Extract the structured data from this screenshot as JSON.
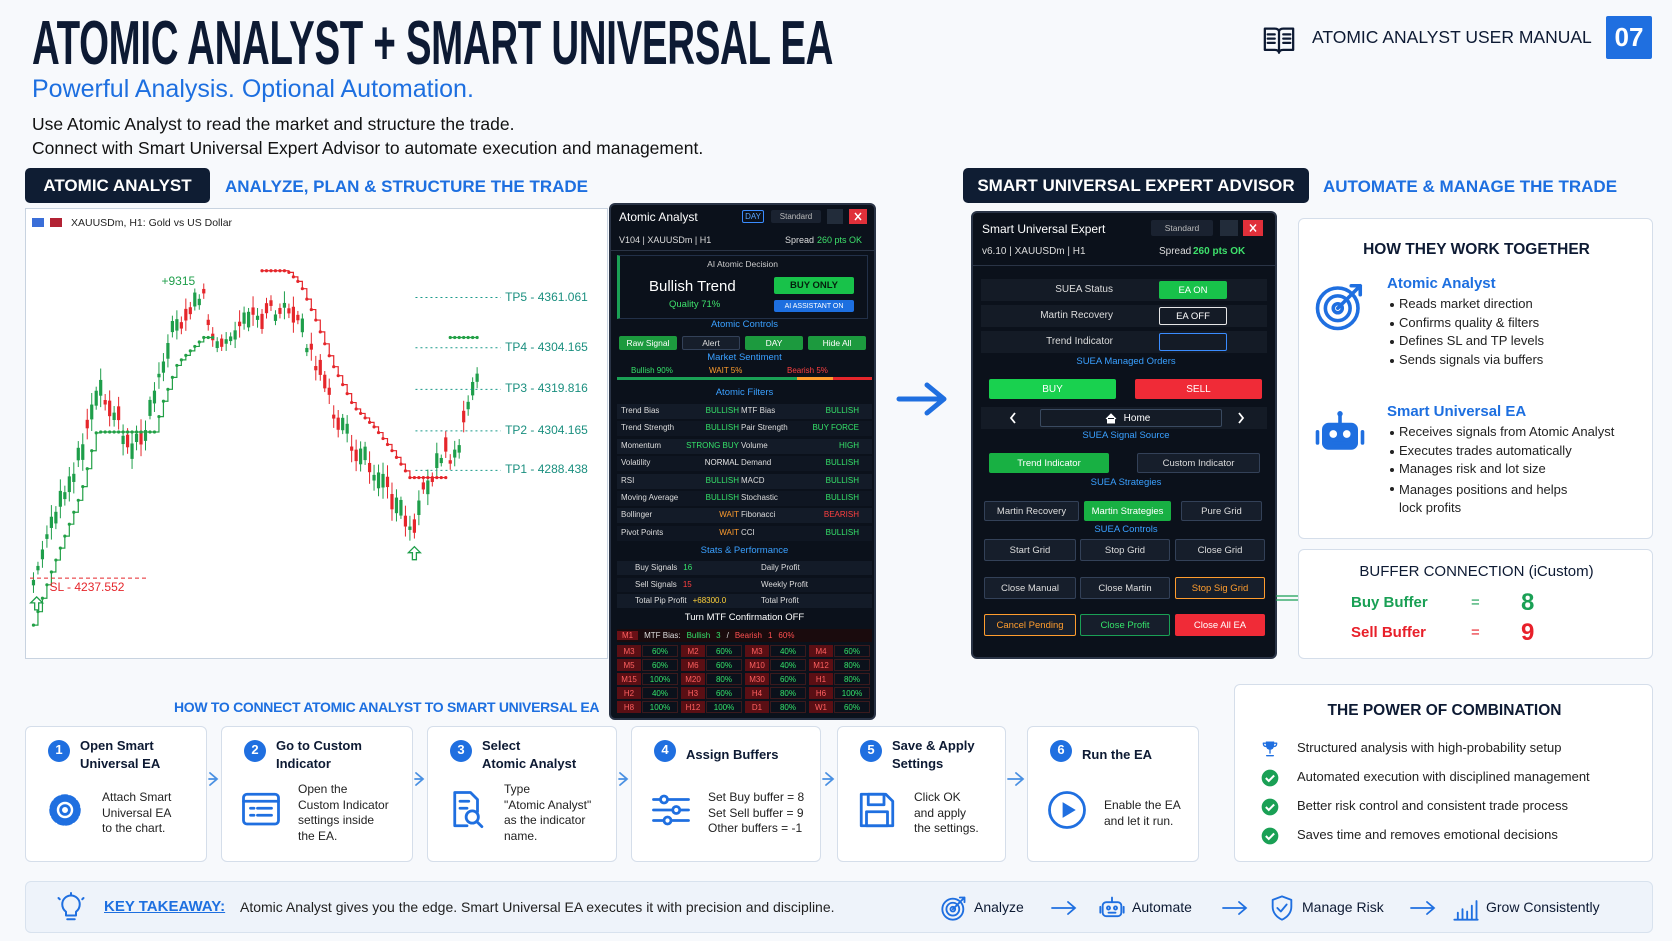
{
  "header": {
    "title": "ATOMIC ANALYST + SMART UNIVERSAL EA",
    "subtitle": "Powerful Analysis. Optional Automation.",
    "lines": [
      "Use Atomic Analyst to read the market and structure the trade.",
      "Connect with Smart Universal Expert Advisor to automate execution and management."
    ],
    "manual": "ATOMIC ANALYST USER MANUAL",
    "page": "07"
  },
  "left": {
    "tag": "ATOMIC ANALYST",
    "heading": "ANALYZE, PLAN & STRUCTURE THE TRADE"
  },
  "chart": {
    "symbol": "XAUUSDm, H1:  Gold vs US Dollar",
    "peak": "+9315",
    "levels": [
      "TP5 - 4361.061",
      "TP4 - 4304.165",
      "TP3 - 4319.816",
      "TP2 - 4304.165",
      "TP1 - 4288.438"
    ],
    "stop": "SL - 4237.552"
  },
  "aa_panel": {
    "title": "Atomic Analyst",
    "mode": "DAY",
    "profile": "Standard",
    "version": "V104 | XAUUSDm | H1",
    "spread_label": "Spread",
    "spread": "260 pts OK",
    "decision_label": "AI Atomic Decision",
    "trend": "Bullish Trend",
    "quality": "Quality 71%",
    "action": "BUY ONLY",
    "assistant": "AI ASSISTANT ON",
    "controls_title": "Atomic Controls",
    "controls": [
      "Raw Signal",
      "Alert",
      "DAY",
      "Hide All"
    ],
    "sentiment_title": "Market Sentiment",
    "sentiment": [
      "Bullish 90%",
      "WAIT 5%",
      "Bearish 5%"
    ],
    "filters_title": "Atomic Filters",
    "filters": [
      [
        {
          "label": "Trend Bias",
          "value": "BULLISH",
          "color": "#35e36a"
        },
        {
          "label": "MTF Bias",
          "value": "BULLISH",
          "color": "#35e36a"
        }
      ],
      [
        {
          "label": "Trend Strength",
          "value": "BULLISH",
          "color": "#35e36a"
        },
        {
          "label": "Pair Strength",
          "value": "BUY FORCE",
          "color": "#35e36a"
        }
      ],
      [
        {
          "label": "Momentum",
          "value": "STRONG BUY",
          "color": "#35e36a"
        },
        {
          "label": "Volume",
          "value": "HIGH",
          "color": "#35e36a"
        }
      ],
      [
        {
          "label": "Volatility",
          "value": "NORMAL",
          "color": "#e6e6e6"
        },
        {
          "label": "Demand",
          "value": "BULLISH",
          "color": "#35e36a"
        }
      ],
      [
        {
          "label": "RSI",
          "value": "BULLISH",
          "color": "#35e36a"
        },
        {
          "label": "MACD",
          "value": "BULLISH",
          "color": "#35e36a"
        }
      ],
      [
        {
          "label": "Moving Average",
          "value": "BULLISH",
          "color": "#35e36a"
        },
        {
          "label": "Stochastic",
          "value": "BULLISH",
          "color": "#35e36a"
        }
      ],
      [
        {
          "label": "Bollinger",
          "value": "WAIT",
          "color": "#ff9d2e"
        },
        {
          "label": "Fibonacci",
          "value": "BEARISH",
          "color": "#ff4040"
        }
      ],
      [
        {
          "label": "Pivot Points",
          "value": "WAIT",
          "color": "#ff9d2e"
        },
        {
          "label": "CCI",
          "value": "BULLISH",
          "color": "#35e36a"
        }
      ]
    ],
    "stats_title": "Stats & Performance",
    "stats": [
      [
        "Buy Signals",
        "16",
        "Daily Profit"
      ],
      [
        "Sell Signals",
        "15",
        "Weekly Profit"
      ],
      [
        "Total Pip Profit",
        "+68300.0",
        "Total Profit"
      ]
    ],
    "mtf_title": "Turn MTF Confirmation OFF",
    "mtf_head": [
      "M1",
      "MTF Bias:",
      "Bullish",
      "3",
      "/",
      "Bearish",
      "1",
      "60%"
    ],
    "mtf": [
      [
        "M3",
        "60%",
        "M2",
        "60%",
        "M3",
        "40%",
        "M4",
        "60%"
      ],
      [
        "M5",
        "60%",
        "M6",
        "60%",
        "M10",
        "40%",
        "M12",
        "80%"
      ],
      [
        "M15",
        "100%",
        "M20",
        "80%",
        "M30",
        "60%",
        "H1",
        "80%"
      ],
      [
        "H2",
        "40%",
        "H3",
        "60%",
        "H4",
        "80%",
        "H6",
        "100%"
      ],
      [
        "H8",
        "100%",
        "H12",
        "100%",
        "D1",
        "80%",
        "W1",
        "60%"
      ]
    ]
  },
  "right": {
    "tag": "SMART UNIVERSAL EXPERT ADVISOR",
    "heading": "AUTOMATE & MANAGE THE TRADE"
  },
  "suea_panel": {
    "title": "Smart Universal Expert",
    "profile": "Standard",
    "version": "v6.10 | XAUUSDm | H1",
    "spread_label": "Spread",
    "spread": "260 pts OK",
    "status": [
      {
        "label": "SUEA Status",
        "state": "EA ON"
      },
      {
        "label": "Martin Recovery",
        "state": "EA OFF"
      },
      {
        "label": "Trend Indicator"
      }
    ],
    "orders_title": "SUEA Managed Orders",
    "orders": [
      "BUY",
      "SELL"
    ],
    "nav": "Home",
    "source_title": "SUEA Signal Source",
    "sources": [
      "Trend Indicator",
      "Custom Indicator"
    ],
    "strategies_title": "SUEA Strategies",
    "strategies": [
      "Martin Recovery",
      "Martin Strategies",
      "Pure Grid"
    ],
    "controls_title": "SUEA Controls",
    "controls": [
      [
        "Start Grid",
        "Stop Grid",
        "Close Grid"
      ],
      [
        "Close Manual",
        "Close Martin",
        "Stop Sig Grid"
      ],
      [
        "Cancel Pending",
        "Close Profit",
        "Close All EA"
      ]
    ]
  },
  "how": {
    "title": "HOW THEY WORK TOGETHER",
    "groups": [
      {
        "title": "Atomic Analyst",
        "bullets": [
          "Reads market direction",
          "Confirms quality & filters",
          "Defines SL and TP levels",
          "Sends signals via buffers"
        ]
      },
      {
        "title": "Smart Universal EA",
        "bullets": [
          "Receives signals from Atomic Analyst",
          "Executes trades automatically",
          "Manages risk and lot size",
          "Manages positions and helps lock profits"
        ]
      }
    ]
  },
  "buffer": {
    "title": "BUFFER CONNECTION (iCustom)",
    "rows": [
      {
        "name": "Buy Buffer",
        "eq": "=",
        "value": 8
      },
      {
        "name": "Sell Buffer",
        "eq": "=",
        "value": 9
      }
    ]
  },
  "steps": {
    "title": "HOW TO CONNECT ATOMIC ANALYST TO SMART UNIVERSAL EA",
    "items": [
      {
        "num": "1",
        "title": [
          "Open Smart",
          "Universal EA"
        ],
        "body": [
          "Attach Smart",
          "Universal EA",
          "to the chart."
        ]
      },
      {
        "num": "2",
        "title": [
          "Go to Custom",
          "Indicator"
        ],
        "body": [
          "Open the",
          "Custom Indicator",
          "settings inside",
          "the EA."
        ]
      },
      {
        "num": "3",
        "title": [
          "Select",
          "Atomic Analyst"
        ],
        "body": [
          "Type",
          "\"Atomic Analyst\"",
          "as the indicator",
          "name."
        ]
      },
      {
        "num": "4",
        "title": [
          "Assign Buffers"
        ],
        "body": [
          "Set Buy buffer = 8",
          "Set Sell buffer = 9",
          "Other buffers = -1"
        ]
      },
      {
        "num": "5",
        "title": [
          "Save & Apply",
          "Settings"
        ],
        "body": [
          "Click OK",
          "and apply",
          "the settings."
        ]
      },
      {
        "num": "6",
        "title": [
          "Run the EA"
        ],
        "body": [
          "Enable the EA",
          "and let it run."
        ]
      }
    ]
  },
  "power": {
    "title": "THE POWER OF COMBINATION",
    "items": [
      "Structured analysis with high-probability setup",
      "Automated execution with disciplined management",
      "Better risk control and consistent trade process",
      "Saves time and removes emotional decisions"
    ]
  },
  "footer": {
    "key": "KEY TAKEAWAY:",
    "text": "Atomic Analyst gives you the edge. Smart Universal EA executes it with precision and discipline.",
    "flow": [
      "Analyze",
      "Automate",
      "Manage Risk",
      "Grow Consistently"
    ]
  }
}
